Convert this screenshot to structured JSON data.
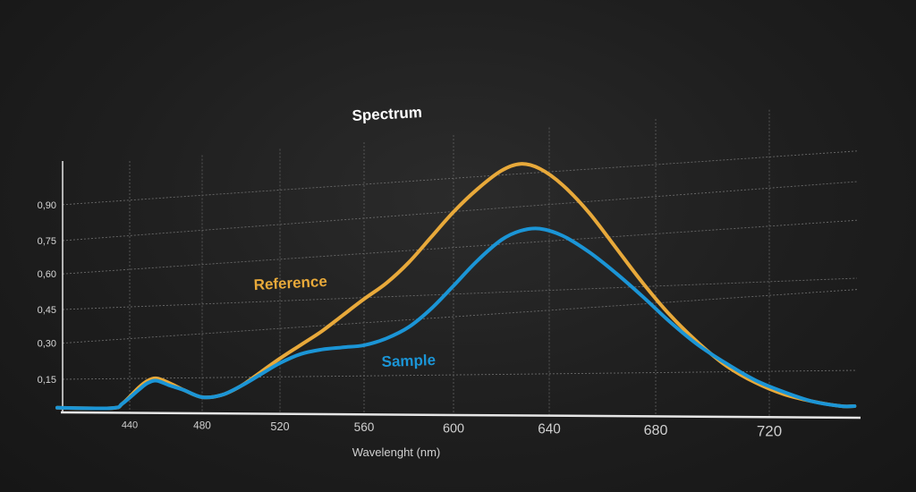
{
  "chart_data": {
    "type": "line",
    "title": "Spectrum",
    "xlabel": "Wavelenght (nm)",
    "ylabel": "",
    "xlim": [
      400,
      750
    ],
    "ylim": [
      0,
      1.05
    ],
    "x_ticks": [
      440,
      480,
      520,
      560,
      600,
      640,
      680,
      720
    ],
    "x_tick_labels": [
      "440",
      "480",
      "520",
      "560",
      "600",
      "640",
      "680",
      "720"
    ],
    "y_ticks": [
      0.15,
      0.3,
      0.45,
      0.6,
      0.75,
      0.9
    ],
    "y_tick_labels": [
      "0,15",
      "0,30",
      "0,45",
      "0,60",
      "0,75",
      "0,90"
    ],
    "grid": true,
    "series": [
      {
        "name": "Reference",
        "color": "#e8a93a",
        "x": [
          400,
          430,
          436,
          445,
          450,
          455,
          462,
          470,
          480,
          490,
          500,
          510,
          520,
          530,
          540,
          550,
          560,
          570,
          580,
          590,
          600,
          610,
          620,
          628,
          636,
          645,
          655,
          665,
          675,
          685,
          695,
          705,
          715,
          725,
          735,
          745,
          750
        ],
        "y": [
          0.02,
          0.02,
          0.04,
          0.11,
          0.14,
          0.15,
          0.13,
          0.1,
          0.07,
          0.08,
          0.12,
          0.18,
          0.24,
          0.3,
          0.36,
          0.43,
          0.5,
          0.57,
          0.66,
          0.77,
          0.88,
          0.98,
          1.06,
          1.09,
          1.07,
          1.0,
          0.88,
          0.73,
          0.58,
          0.44,
          0.32,
          0.22,
          0.15,
          0.1,
          0.07,
          0.05,
          0.05
        ]
      },
      {
        "name": "Sample",
        "color": "#1b95d6",
        "x": [
          400,
          430,
          436,
          445,
          450,
          455,
          462,
          470,
          480,
          490,
          500,
          510,
          520,
          530,
          540,
          550,
          560,
          570,
          580,
          590,
          600,
          610,
          620,
          628,
          636,
          645,
          655,
          665,
          675,
          685,
          695,
          705,
          715,
          725,
          735,
          745,
          750
        ],
        "y": [
          0.02,
          0.02,
          0.04,
          0.1,
          0.13,
          0.14,
          0.12,
          0.1,
          0.07,
          0.08,
          0.12,
          0.17,
          0.22,
          0.26,
          0.28,
          0.29,
          0.3,
          0.33,
          0.38,
          0.46,
          0.56,
          0.67,
          0.76,
          0.8,
          0.81,
          0.78,
          0.71,
          0.62,
          0.52,
          0.41,
          0.31,
          0.23,
          0.16,
          0.11,
          0.07,
          0.05,
          0.05
        ]
      }
    ]
  }
}
